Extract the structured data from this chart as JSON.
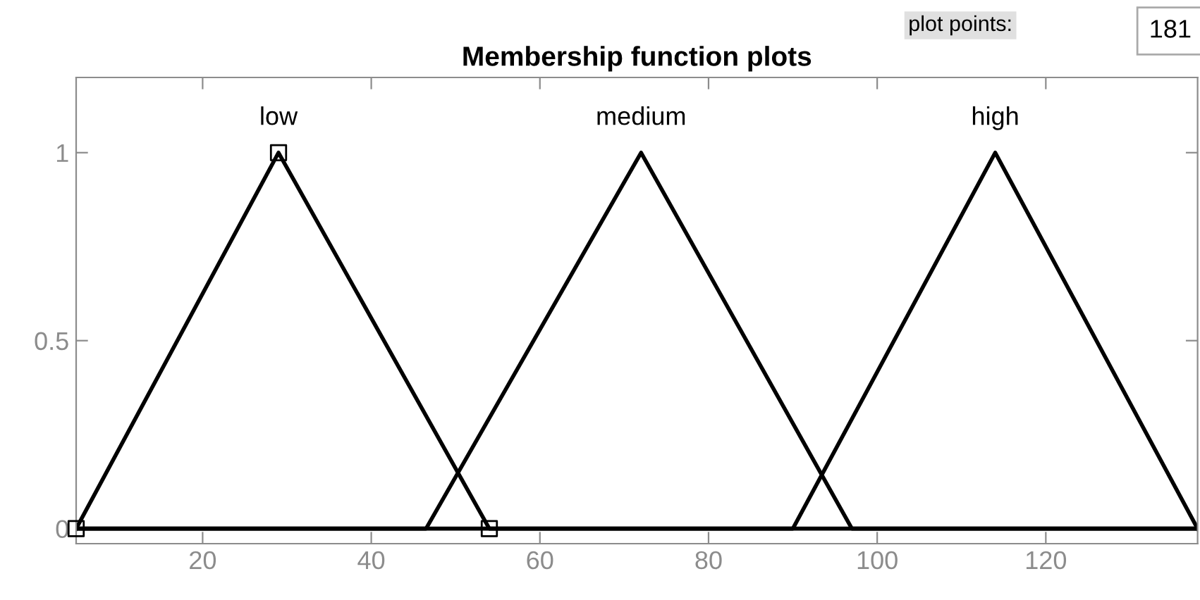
{
  "chart_data": {
    "type": "line",
    "title": "Membership function plots",
    "xlim": [
      5,
      138
    ],
    "ylim": [
      -0.04,
      1.2
    ],
    "xticks": [
      20,
      40,
      60,
      80,
      100,
      120
    ],
    "yticks": [
      0,
      0.5,
      1
    ],
    "grid": false,
    "legend": false,
    "line_style": "solid",
    "marker": "none",
    "series": [
      {
        "name": "low",
        "color": "#000000",
        "x": [
          5,
          29,
          54,
          138
        ],
        "values": [
          0,
          1,
          0,
          0
        ]
      },
      {
        "name": "medium",
        "color": "#000000",
        "x": [
          5,
          46.5,
          72,
          97,
          138
        ],
        "values": [
          0,
          0,
          1,
          0,
          0
        ]
      },
      {
        "name": "high",
        "color": "#000000",
        "x": [
          5,
          90,
          114,
          138
        ],
        "values": [
          0,
          0,
          1,
          0
        ]
      },
      {
        "type": "scatter",
        "marker": "square",
        "color": "#000000",
        "x": [
          5,
          29,
          54
        ],
        "values": [
          0,
          1,
          0
        ]
      }
    ],
    "annotations": [
      "plot points:",
      "181"
    ]
  }
}
